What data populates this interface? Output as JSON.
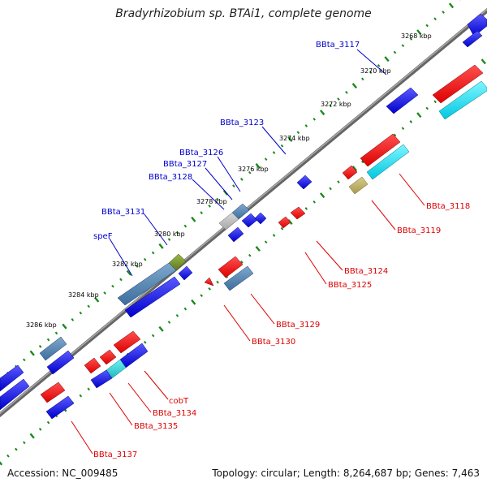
{
  "title": "Bradyrhizobium sp. BTAi1, complete genome",
  "footer": {
    "accession": "Accession: NC_009485",
    "summary": "Topology: circular; Length: 8,264,687 bp; Genes: 7,463"
  },
  "colors": {
    "backbone": "#888888",
    "tick": "#1a8a1a",
    "forward_label": "#0000cc",
    "reverse_label": "#dd0000"
  },
  "scale_labels": [
    "3268 kbp",
    "3270 kbp",
    "3272 kbp",
    "3274 kbp",
    "3276 kbp",
    "3278 kbp",
    "3280 kbp",
    "3282 kbp",
    "3284 kbp",
    "3286 kbp"
  ],
  "forward_gene_labels": [
    "BBta_3117",
    "BBta_3123",
    "BBta_3126",
    "BBta_3127",
    "BBta_3128",
    "BBta_3131",
    "speF"
  ],
  "reverse_gene_labels": [
    "BBta_3118",
    "BBta_3119",
    "BBta_3124",
    "BBta_3125",
    "BBta_3129",
    "BBta_3130",
    "cobT",
    "BBta_3134",
    "BBta_3135",
    "BBta_3137"
  ]
}
